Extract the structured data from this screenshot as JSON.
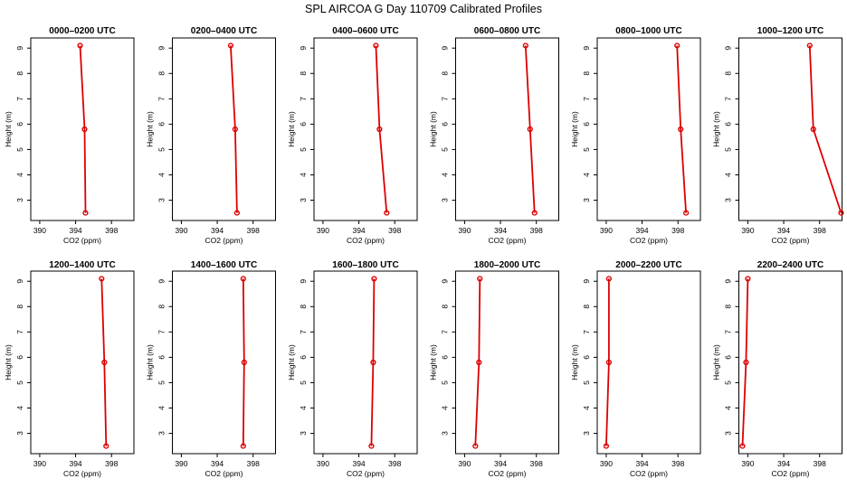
{
  "title": "SPL AIRCOA G  Day 110709  Calibrated Profiles",
  "colors": {
    "series": "#dd0000",
    "axis": "#000000",
    "background": "#ffffff"
  },
  "chart_data": [
    {
      "type": "line",
      "title": "0000–0200 UTC",
      "xlabel": "CO2 (ppm)",
      "ylabel": "Height (m)",
      "xlim": [
        389,
        400.5
      ],
      "ylim": [
        2.2,
        9.4
      ],
      "xticks": [
        390,
        394,
        398
      ],
      "yticks": [
        3,
        4,
        5,
        6,
        7,
        8,
        9
      ],
      "height": [
        9.1,
        5.8,
        2.5
      ],
      "co2": [
        394.5,
        395.0,
        395.1
      ]
    },
    {
      "type": "line",
      "title": "0200–0400 UTC",
      "xlabel": "CO2 (ppm)",
      "ylabel": "Height (m)",
      "xlim": [
        389,
        400.5
      ],
      "ylim": [
        2.2,
        9.4
      ],
      "xticks": [
        390,
        394,
        398
      ],
      "yticks": [
        3,
        4,
        5,
        6,
        7,
        8,
        9
      ],
      "height": [
        9.1,
        5.8,
        2.5
      ],
      "co2": [
        395.5,
        396.0,
        396.2
      ]
    },
    {
      "type": "line",
      "title": "0400–0600 UTC",
      "xlabel": "CO2 (ppm)",
      "ylabel": "Height (m)",
      "xlim": [
        389,
        400.5
      ],
      "ylim": [
        2.2,
        9.4
      ],
      "xticks": [
        390,
        394,
        398
      ],
      "yticks": [
        3,
        4,
        5,
        6,
        7,
        8,
        9
      ],
      "height": [
        9.1,
        5.8,
        2.5
      ],
      "co2": [
        395.9,
        396.3,
        397.1
      ]
    },
    {
      "type": "line",
      "title": "0600–0800 UTC",
      "xlabel": "CO2 (ppm)",
      "ylabel": "Height (m)",
      "xlim": [
        389,
        400.5
      ],
      "ylim": [
        2.2,
        9.4
      ],
      "xticks": [
        390,
        394,
        398
      ],
      "yticks": [
        3,
        4,
        5,
        6,
        7,
        8,
        9
      ],
      "height": [
        9.1,
        5.8,
        2.5
      ],
      "co2": [
        396.8,
        397.3,
        397.8
      ]
    },
    {
      "type": "line",
      "title": "0800–1000 UTC",
      "xlabel": "CO2 (ppm)",
      "ylabel": "Height (m)",
      "xlim": [
        389,
        400.5
      ],
      "ylim": [
        2.2,
        9.4
      ],
      "xticks": [
        390,
        394,
        398
      ],
      "yticks": [
        3,
        4,
        5,
        6,
        7,
        8,
        9
      ],
      "height": [
        9.1,
        5.8,
        2.5
      ],
      "co2": [
        397.9,
        398.3,
        398.9
      ]
    },
    {
      "type": "line",
      "title": "1000–1200 UTC",
      "xlabel": "CO2 (ppm)",
      "ylabel": "Height (m)",
      "xlim": [
        389,
        400.5
      ],
      "ylim": [
        2.2,
        9.4
      ],
      "xticks": [
        390,
        394,
        398
      ],
      "yticks": [
        3,
        4,
        5,
        6,
        7,
        8,
        9
      ],
      "height": [
        9.1,
        5.8,
        2.5
      ],
      "co2": [
        396.9,
        397.3,
        400.4
      ]
    },
    {
      "type": "line",
      "title": "1200–1400 UTC",
      "xlabel": "CO2 (ppm)",
      "ylabel": "Height (m)",
      "xlim": [
        389,
        400.5
      ],
      "ylim": [
        2.2,
        9.4
      ],
      "xticks": [
        390,
        394,
        398
      ],
      "yticks": [
        3,
        4,
        5,
        6,
        7,
        8,
        9
      ],
      "height": [
        9.1,
        5.8,
        2.5
      ],
      "co2": [
        396.9,
        397.2,
        397.4
      ]
    },
    {
      "type": "line",
      "title": "1400–1600 UTC",
      "xlabel": "CO2 (ppm)",
      "ylabel": "Height (m)",
      "xlim": [
        389,
        400.5
      ],
      "ylim": [
        2.2,
        9.4
      ],
      "xticks": [
        390,
        394,
        398
      ],
      "yticks": [
        3,
        4,
        5,
        6,
        7,
        8,
        9
      ],
      "height": [
        9.1,
        5.8,
        2.5
      ],
      "co2": [
        396.9,
        397.0,
        396.9
      ]
    },
    {
      "type": "line",
      "title": "1600–1800 UTC",
      "xlabel": "CO2 (ppm)",
      "ylabel": "Height (m)",
      "xlim": [
        389,
        400.5
      ],
      "ylim": [
        2.2,
        9.4
      ],
      "xticks": [
        390,
        394,
        398
      ],
      "yticks": [
        3,
        4,
        5,
        6,
        7,
        8,
        9
      ],
      "height": [
        9.1,
        5.8,
        2.5
      ],
      "co2": [
        395.7,
        395.6,
        395.4
      ]
    },
    {
      "type": "line",
      "title": "1800–2000 UTC",
      "xlabel": "CO2 (ppm)",
      "ylabel": "Height (m)",
      "xlim": [
        389,
        400.5
      ],
      "ylim": [
        2.2,
        9.4
      ],
      "xticks": [
        390,
        394,
        398
      ],
      "yticks": [
        3,
        4,
        5,
        6,
        7,
        8,
        9
      ],
      "height": [
        9.1,
        5.8,
        2.5
      ],
      "co2": [
        391.7,
        391.6,
        391.2
      ]
    },
    {
      "type": "line",
      "title": "2000–2200 UTC",
      "xlabel": "CO2 (ppm)",
      "ylabel": "Height (m)",
      "xlim": [
        389,
        400.5
      ],
      "ylim": [
        2.2,
        9.4
      ],
      "xticks": [
        390,
        394,
        398
      ],
      "yticks": [
        3,
        4,
        5,
        6,
        7,
        8,
        9
      ],
      "height": [
        9.1,
        5.8,
        2.5
      ],
      "co2": [
        390.3,
        390.3,
        390.0
      ]
    },
    {
      "type": "line",
      "title": "2200–2400 UTC",
      "xlabel": "CO2 (ppm)",
      "ylabel": "Height (m)",
      "xlim": [
        389,
        400.5
      ],
      "ylim": [
        2.2,
        9.4
      ],
      "xticks": [
        390,
        394,
        398
      ],
      "yticks": [
        3,
        4,
        5,
        6,
        7,
        8,
        9
      ],
      "height": [
        9.1,
        5.8,
        2.5
      ],
      "co2": [
        390.0,
        389.8,
        389.4
      ]
    }
  ]
}
